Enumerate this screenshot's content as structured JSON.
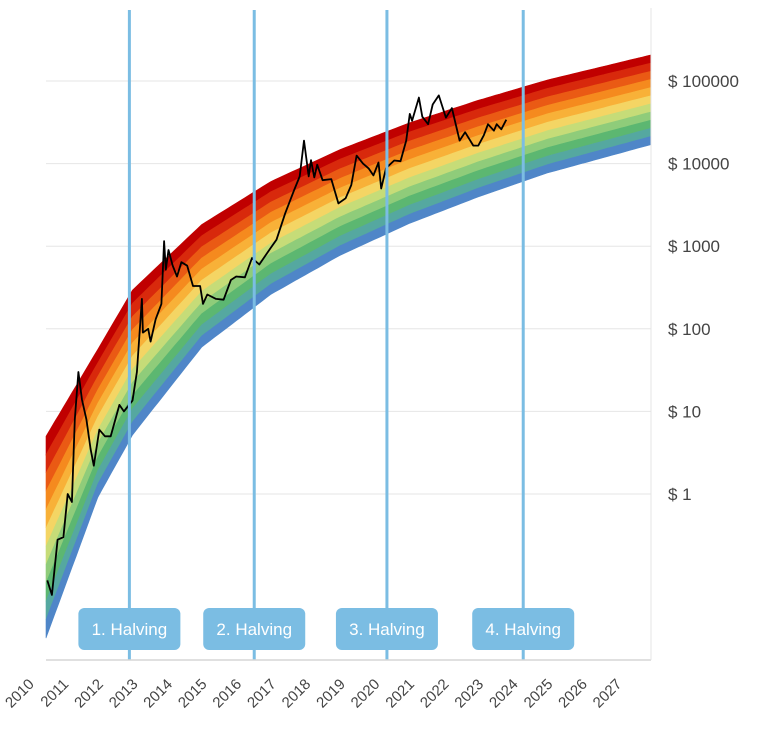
{
  "chart_data": {
    "type": "area",
    "x_axis": {
      "type": "date",
      "tick_labels": [
        "2010",
        "2011",
        "2012",
        "2013",
        "2014",
        "2015",
        "2016",
        "2017",
        "2018",
        "2019",
        "2020",
        "2021",
        "2022",
        "2023",
        "2024",
        "2025",
        "2026",
        "2027"
      ],
      "range": [
        "2010-07-01",
        "2027-12-31"
      ]
    },
    "y_axis": {
      "scale": "log",
      "tick_labels": [
        "$ 1",
        "$ 10",
        "$ 100",
        "$ 1000",
        "$ 10000",
        "$ 100000"
      ],
      "tick_values": [
        1,
        10,
        100,
        1000,
        10000,
        100000
      ]
    },
    "grid": "horizontal",
    "rainbow_bands": {
      "colors": [
        "#c00000",
        "#d8290c",
        "#ea5a14",
        "#f58a1e",
        "#f8b138",
        "#f4d564",
        "#c6dc78",
        "#8fcc7a",
        "#5cb771",
        "#55a8a0",
        "#4f86c8"
      ],
      "top_price": [
        {
          "x": "2010-07-01",
          "y": 5
        },
        {
          "x": "2012-01-01",
          "y": 57
        },
        {
          "x": "2013-01-01",
          "y": 296
        },
        {
          "x": "2015-01-01",
          "y": 1830
        },
        {
          "x": "2017-01-01",
          "y": 6080
        },
        {
          "x": "2019-01-01",
          "y": 14800
        },
        {
          "x": "2021-01-01",
          "y": 31100
        },
        {
          "x": "2023-01-01",
          "y": 58400
        },
        {
          "x": "2025-01-01",
          "y": 103000
        },
        {
          "x": "2027-12-31",
          "y": 207000
        }
      ],
      "bottom_price": [
        {
          "x": "2010-07-01",
          "y": 0.018
        },
        {
          "x": "2012-01-01",
          "y": 0.92
        },
        {
          "x": "2013-01-01",
          "y": 5.2
        },
        {
          "x": "2015-01-01",
          "y": 60
        },
        {
          "x": "2017-01-01",
          "y": 261
        },
        {
          "x": "2019-01-01",
          "y": 774
        },
        {
          "x": "2021-01-01",
          "y": 1880
        },
        {
          "x": "2023-01-01",
          "y": 3950
        },
        {
          "x": "2025-01-01",
          "y": 7700
        },
        {
          "x": "2027-12-31",
          "y": 17000
        }
      ]
    },
    "series": [
      {
        "type": "line",
        "color": "#000000",
        "points": [
          {
            "x": "2010-07-15",
            "y": 0.09
          },
          {
            "x": "2010-09-01",
            "y": 0.06
          },
          {
            "x": "2010-11-01",
            "y": 0.28
          },
          {
            "x": "2011-01-01",
            "y": 0.3
          },
          {
            "x": "2011-02-15",
            "y": 1.0
          },
          {
            "x": "2011-04-01",
            "y": 0.8
          },
          {
            "x": "2011-05-01",
            "y": 8
          },
          {
            "x": "2011-06-08",
            "y": 30
          },
          {
            "x": "2011-07-15",
            "y": 14
          },
          {
            "x": "2011-09-01",
            "y": 8
          },
          {
            "x": "2011-10-15",
            "y": 3.5
          },
          {
            "x": "2011-11-18",
            "y": 2.2
          },
          {
            "x": "2012-01-15",
            "y": 6
          },
          {
            "x": "2012-03-15",
            "y": 5
          },
          {
            "x": "2012-05-15",
            "y": 5
          },
          {
            "x": "2012-08-15",
            "y": 12
          },
          {
            "x": "2012-10-01",
            "y": 10
          },
          {
            "x": "2012-12-31",
            "y": 13.5
          },
          {
            "x": "2013-02-15",
            "y": 30
          },
          {
            "x": "2013-04-09",
            "y": 230
          },
          {
            "x": "2013-04-20",
            "y": 90
          },
          {
            "x": "2013-06-15",
            "y": 100
          },
          {
            "x": "2013-07-10",
            "y": 70
          },
          {
            "x": "2013-09-01",
            "y": 130
          },
          {
            "x": "2013-11-01",
            "y": 200
          },
          {
            "x": "2013-11-30",
            "y": 1150
          },
          {
            "x": "2013-12-18",
            "y": 520
          },
          {
            "x": "2014-01-15",
            "y": 900
          },
          {
            "x": "2014-03-01",
            "y": 580
          },
          {
            "x": "2014-04-15",
            "y": 430
          },
          {
            "x": "2014-06-01",
            "y": 640
          },
          {
            "x": "2014-08-01",
            "y": 580
          },
          {
            "x": "2014-10-01",
            "y": 330
          },
          {
            "x": "2014-12-15",
            "y": 330
          },
          {
            "x": "2015-01-15",
            "y": 200
          },
          {
            "x": "2015-03-01",
            "y": 260
          },
          {
            "x": "2015-06-01",
            "y": 230
          },
          {
            "x": "2015-08-20",
            "y": 225
          },
          {
            "x": "2015-11-05",
            "y": 390
          },
          {
            "x": "2016-01-01",
            "y": 430
          },
          {
            "x": "2016-04-01",
            "y": 420
          },
          {
            "x": "2016-06-15",
            "y": 720
          },
          {
            "x": "2016-09-01",
            "y": 600
          },
          {
            "x": "2016-12-31",
            "y": 960
          },
          {
            "x": "2017-03-01",
            "y": 1200
          },
          {
            "x": "2017-06-01",
            "y": 2500
          },
          {
            "x": "2017-09-01",
            "y": 4700
          },
          {
            "x": "2017-11-01",
            "y": 7000
          },
          {
            "x": "2017-12-17",
            "y": 19000
          },
          {
            "x": "2018-02-05",
            "y": 7000
          },
          {
            "x": "2018-03-01",
            "y": 11000
          },
          {
            "x": "2018-04-05",
            "y": 6800
          },
          {
            "x": "2018-05-05",
            "y": 9700
          },
          {
            "x": "2018-07-01",
            "y": 6300
          },
          {
            "x": "2018-10-01",
            "y": 6500
          },
          {
            "x": "2018-12-15",
            "y": 3300
          },
          {
            "x": "2019-03-01",
            "y": 3800
          },
          {
            "x": "2019-05-01",
            "y": 5500
          },
          {
            "x": "2019-06-26",
            "y": 12500
          },
          {
            "x": "2019-09-01",
            "y": 10000
          },
          {
            "x": "2019-11-01",
            "y": 8700
          },
          {
            "x": "2019-12-20",
            "y": 7200
          },
          {
            "x": "2020-02-12",
            "y": 10300
          },
          {
            "x": "2020-03-12",
            "y": 5000
          },
          {
            "x": "2020-05-01",
            "y": 8800
          },
          {
            "x": "2020-07-27",
            "y": 10900
          },
          {
            "x": "2020-10-01",
            "y": 10700
          },
          {
            "x": "2020-12-01",
            "y": 19000
          },
          {
            "x": "2021-01-08",
            "y": 40000
          },
          {
            "x": "2021-02-01",
            "y": 33000
          },
          {
            "x": "2021-04-14",
            "y": 63000
          },
          {
            "x": "2021-05-20",
            "y": 37000
          },
          {
            "x": "2021-07-20",
            "y": 30000
          },
          {
            "x": "2021-09-07",
            "y": 52000
          },
          {
            "x": "2021-11-10",
            "y": 67000
          },
          {
            "x": "2022-01-24",
            "y": 36000
          },
          {
            "x": "2022-03-28",
            "y": 47000
          },
          {
            "x": "2022-06-18",
            "y": 19000
          },
          {
            "x": "2022-08-15",
            "y": 24000
          },
          {
            "x": "2022-11-10",
            "y": 16500
          },
          {
            "x": "2023-01-01",
            "y": 16500
          },
          {
            "x": "2023-03-01",
            "y": 22000
          },
          {
            "x": "2023-04-14",
            "y": 30000
          },
          {
            "x": "2023-06-15",
            "y": 25000
          },
          {
            "x": "2023-07-15",
            "y": 30000
          },
          {
            "x": "2023-09-01",
            "y": 26000
          },
          {
            "x": "2023-10-24",
            "y": 34000
          }
        ]
      }
    ],
    "annotations": [
      {
        "label": "1. Halving",
        "date": "2012-11-28"
      },
      {
        "label": "2. Halving",
        "date": "2016-07-09"
      },
      {
        "label": "3. Halving",
        "date": "2020-05-11"
      },
      {
        "label": "4. Halving",
        "date": "2024-04-20"
      }
    ],
    "halving_color": "#7bbde3"
  }
}
